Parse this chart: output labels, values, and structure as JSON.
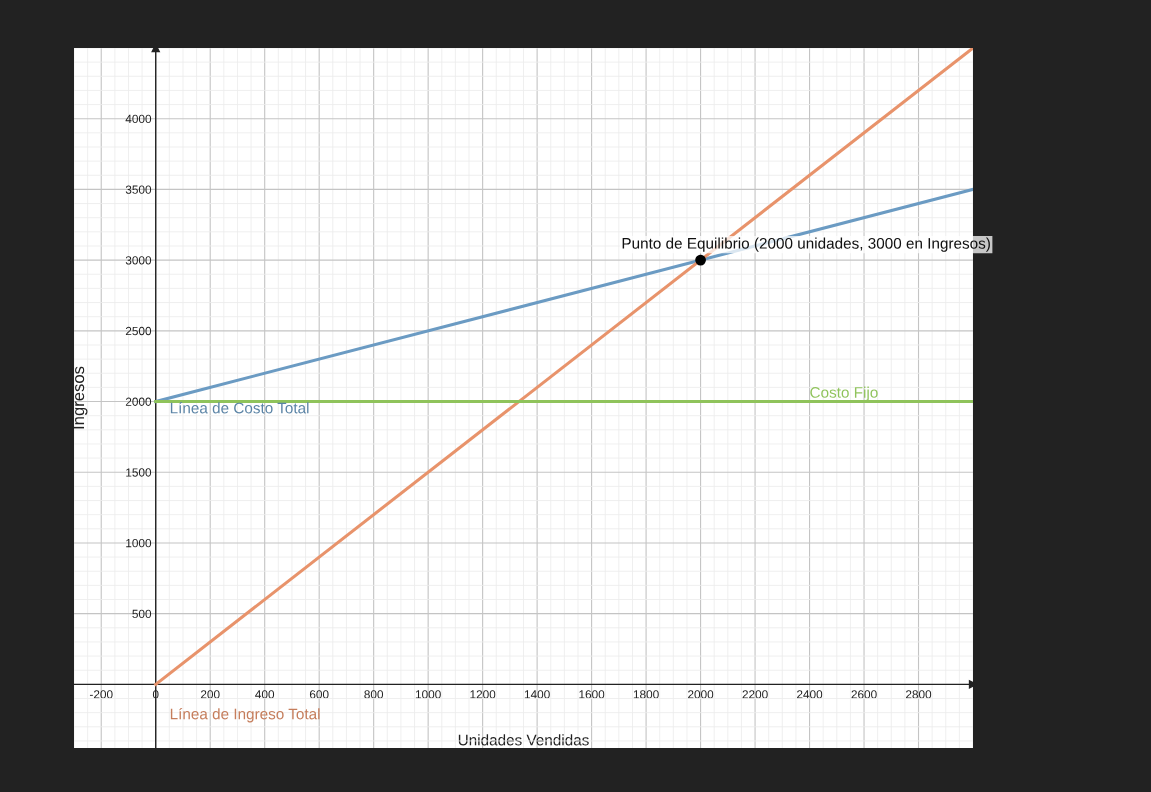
{
  "chart_data": {
    "type": "line",
    "xlabel": "Unidades Vendidas",
    "ylabel": "Ingresos",
    "xlim": [
      -300,
      3000
    ],
    "ylim": [
      -450,
      4500
    ],
    "xticks": [
      -200,
      0,
      200,
      400,
      600,
      800,
      1000,
      1200,
      1400,
      1600,
      1800,
      2000,
      2200,
      2400,
      2600,
      2800
    ],
    "yticks": [
      500,
      1000,
      1500,
      2000,
      2500,
      3000,
      3500,
      4000
    ],
    "grid": true,
    "legend": false,
    "series": [
      {
        "color": "#6b9bc3",
        "x": [
          0,
          3000
        ],
        "values": [
          2000,
          3500
        ]
      },
      {
        "color": "#e8936b",
        "x": [
          0,
          3000
        ],
        "values": [
          0,
          4500
        ]
      },
      {
        "color": "#8fc35b",
        "x": [
          0,
          3000
        ],
        "values": [
          2000,
          2000
        ]
      },
      {
        "type": "scatter",
        "color": "#000000",
        "x": [
          2000
        ],
        "values": [
          3000
        ]
      }
    ],
    "annotations": [
      {
        "text": "Línea de Costo Total",
        "x": 0,
        "y": 2000
      },
      {
        "text": "Línea de Ingreso Total",
        "x": 0,
        "y": 0
      },
      {
        "text": "Costo Fijo",
        "x": 2400,
        "y": 2000
      },
      {
        "text": "Punto de Equilibrio (2000 unidades, 3000 en Ingresos)",
        "x": 2000,
        "y": 3000
      }
    ]
  }
}
